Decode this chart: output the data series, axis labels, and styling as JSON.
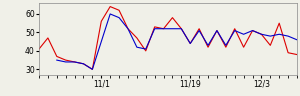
{
  "red_y": [
    41,
    47,
    37,
    35,
    34,
    33,
    30,
    56,
    64,
    62,
    52,
    47,
    40,
    53,
    52,
    58,
    52,
    44,
    52,
    42,
    51,
    42,
    52,
    42,
    51,
    49,
    43,
    55,
    39,
    38
  ],
  "blue_y": [
    null,
    null,
    35,
    34,
    34,
    33,
    30,
    45,
    60,
    58,
    52,
    42,
    41,
    52,
    52,
    52,
    52,
    44,
    51,
    43,
    51,
    43,
    51,
    49,
    51,
    49,
    48,
    49,
    48,
    46
  ],
  "yticks": [
    30,
    40,
    50,
    60
  ],
  "ylim": [
    27,
    66
  ],
  "xlim": [
    0,
    29
  ],
  "red_color": "#dd0000",
  "blue_color": "#0000cc",
  "bg_color": "#f0f0e8",
  "linewidth": 0.8,
  "xtick_positions": [
    7,
    17,
    25
  ],
  "xtick_labels": [
    "11/1",
    "11/19",
    "12/3"
  ]
}
